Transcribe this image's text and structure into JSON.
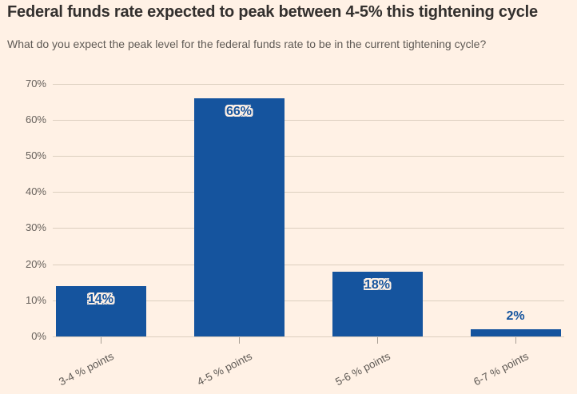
{
  "header": {
    "title": "Federal funds rate expected to peak between 4-5% this tightening cycle",
    "subtitle": "What do you expect the peak level for the federal funds rate to be in the current tightening cycle?"
  },
  "colors": {
    "background": "#FFF1E5",
    "bar": "#15549E",
    "title_text": "#33302E",
    "subtitle_text": "#5F5A55",
    "axis_text": "#66605B",
    "gridline": "#DCCFBF",
    "tick_mark": "#A89F94",
    "value_label_text": "#15549E",
    "value_label_halo": "#FFFFFF"
  },
  "chart_data": {
    "type": "bar",
    "title": "Federal funds rate expected to peak between 4-5% this tightening cycle",
    "subtitle": "What do you expect the peak level for the federal funds rate to be in the current tightening cycle?",
    "categories": [
      "3-4 % points",
      "4-5 % points",
      "5-6 % points",
      "6-7 % points"
    ],
    "values": [
      14,
      66,
      18,
      2
    ],
    "value_labels": [
      "14%",
      "66%",
      "18%",
      "2%"
    ],
    "xlabel": "",
    "ylabel": "",
    "y_tick_values": [
      0,
      10,
      20,
      30,
      40,
      50,
      60,
      70
    ],
    "y_tick_labels": [
      "0%",
      "10%",
      "20%",
      "30%",
      "40%",
      "50%",
      "60%",
      "70%"
    ],
    "ylim": [
      0,
      70
    ],
    "grid": "horizontal",
    "legend": "none",
    "value_label_placement": [
      "inside-top",
      "inside-top",
      "inside-top",
      "above"
    ]
  }
}
